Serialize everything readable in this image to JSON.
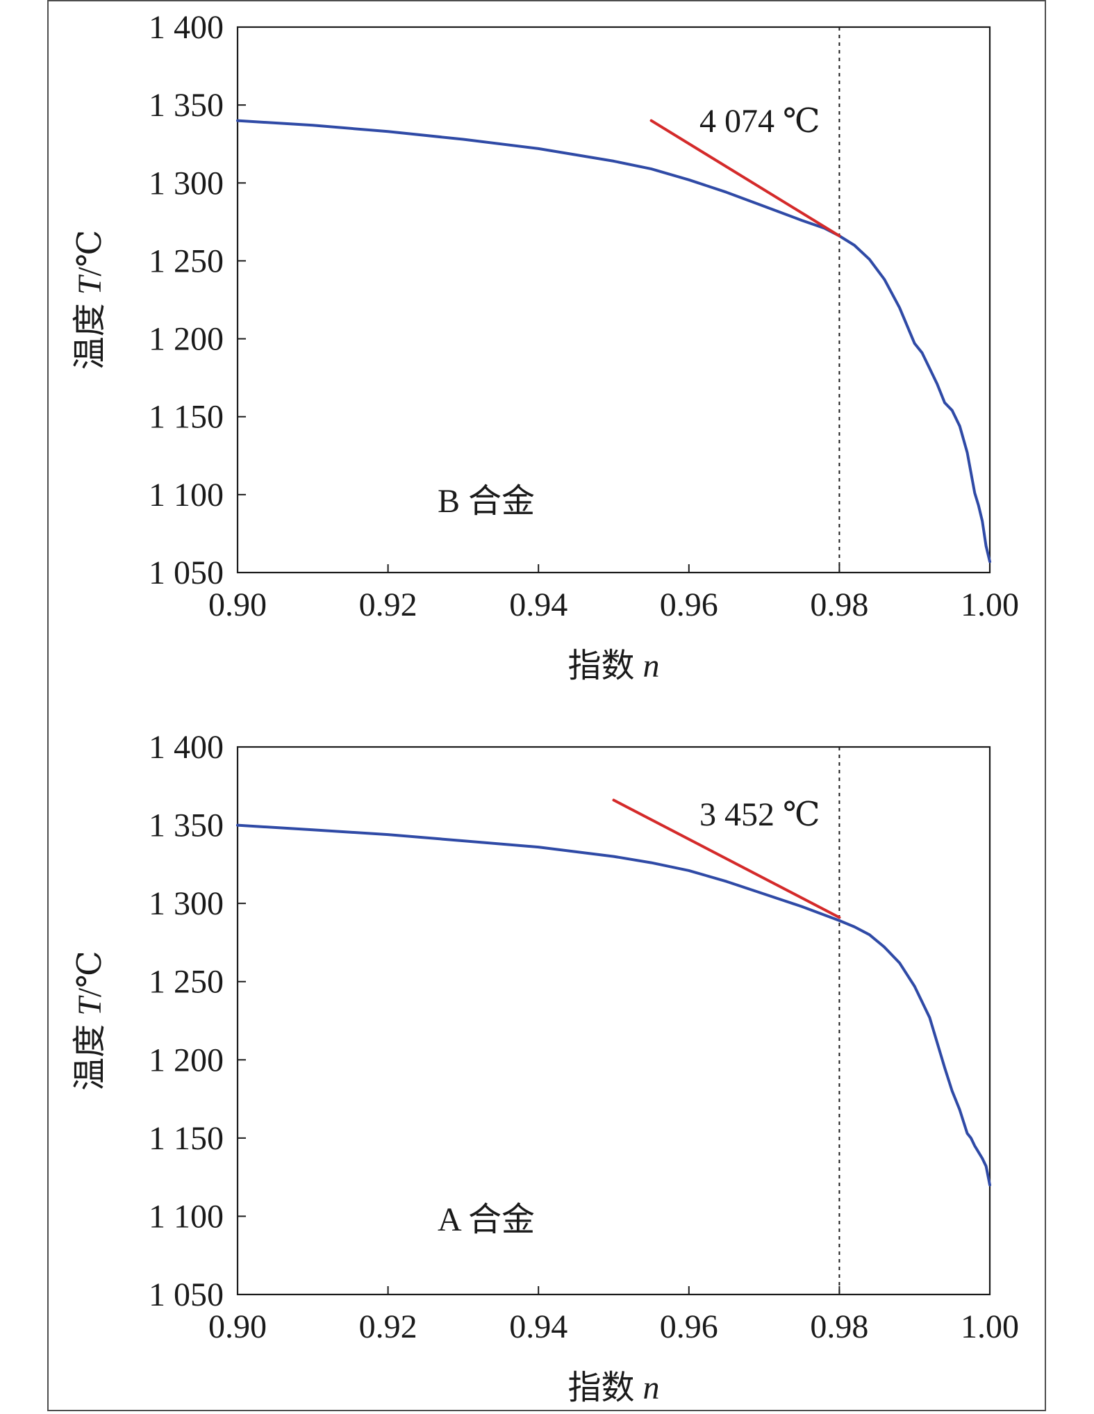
{
  "colors": {
    "curve": "#2f4aa6",
    "tangent": "#d42a2a",
    "axis": "#1a1a1a",
    "ref_line": "#1a1a1a"
  },
  "chart_data": [
    {
      "type": "line",
      "panel_label": "B 合金",
      "annotation": "4 074 ℃",
      "xlabel": {
        "prefix": "指数 ",
        "var": "n",
        "suffix": ""
      },
      "ylabel": {
        "prefix": "温度 ",
        "var": "T",
        "suffix": "/℃"
      },
      "xlim": [
        0.9,
        1.0
      ],
      "ylim": [
        1050,
        1400
      ],
      "x_ticks": [
        "0.90",
        "0.92",
        "0.94",
        "0.96",
        "0.98",
        "1.00"
      ],
      "y_ticks": [
        "1 050",
        "1 100",
        "1 150",
        "1 200",
        "1 250",
        "1 300",
        "1 350",
        "1 400"
      ],
      "x_tick_values": [
        0.9,
        0.92,
        0.94,
        0.96,
        0.98,
        1.0
      ],
      "y_tick_values": [
        1050,
        1100,
        1150,
        1200,
        1250,
        1300,
        1350,
        1400
      ],
      "vline_x": 0.98,
      "series": [
        {
          "role": "curve",
          "x": [
            0.9,
            0.91,
            0.92,
            0.93,
            0.94,
            0.95,
            0.955,
            0.96,
            0.965,
            0.97,
            0.975,
            0.978,
            0.98,
            0.982,
            0.984,
            0.986,
            0.988,
            0.99,
            0.991,
            0.992,
            0.993,
            0.994,
            0.995,
            0.996,
            0.997,
            0.998,
            0.9985,
            0.999,
            0.9995,
            1.0
          ],
          "y": [
            1340,
            1337,
            1333,
            1328,
            1322,
            1314,
            1309,
            1302,
            1294,
            1285,
            1276,
            1271,
            1266,
            1260,
            1251,
            1238,
            1220,
            1197,
            1191,
            1181,
            1171,
            1159,
            1154,
            1144,
            1127,
            1101,
            1093,
            1083,
            1067,
            1057
          ]
        },
        {
          "role": "tangent",
          "x": [
            0.955,
            0.98
          ],
          "y": [
            1340,
            1266
          ]
        }
      ]
    },
    {
      "type": "line",
      "panel_label": "A 合金",
      "annotation": "3 452 ℃",
      "xlabel": {
        "prefix": "指数 ",
        "var": "n",
        "suffix": ""
      },
      "ylabel": {
        "prefix": "温度 ",
        "var": "T",
        "suffix": "/℃"
      },
      "xlim": [
        0.9,
        1.0
      ],
      "ylim": [
        1050,
        1400
      ],
      "x_ticks": [
        "0.90",
        "0.92",
        "0.94",
        "0.96",
        "0.98",
        "1.00"
      ],
      "y_ticks": [
        "1 050",
        "1 100",
        "1 150",
        "1 200",
        "1 250",
        "1 300",
        "1 350",
        "1 400"
      ],
      "x_tick_values": [
        0.9,
        0.92,
        0.94,
        0.96,
        0.98,
        1.0
      ],
      "y_tick_values": [
        1050,
        1100,
        1150,
        1200,
        1250,
        1300,
        1350,
        1400
      ],
      "vline_x": 0.98,
      "series": [
        {
          "role": "curve",
          "x": [
            0.9,
            0.91,
            0.92,
            0.93,
            0.94,
            0.95,
            0.955,
            0.96,
            0.965,
            0.97,
            0.975,
            0.98,
            0.982,
            0.984,
            0.986,
            0.988,
            0.99,
            0.992,
            0.994,
            0.995,
            0.996,
            0.997,
            0.9975,
            0.998,
            0.999,
            0.9995,
            1.0
          ],
          "y": [
            1350,
            1347,
            1344,
            1340,
            1336,
            1330,
            1326,
            1321,
            1314,
            1306,
            1298,
            1289,
            1285,
            1280,
            1272,
            1262,
            1247,
            1227,
            1195,
            1180,
            1168,
            1153,
            1150,
            1145,
            1137,
            1132,
            1120
          ]
        },
        {
          "role": "tangent",
          "x": [
            0.95,
            0.98
          ],
          "y": [
            1366,
            1291
          ]
        }
      ]
    }
  ]
}
